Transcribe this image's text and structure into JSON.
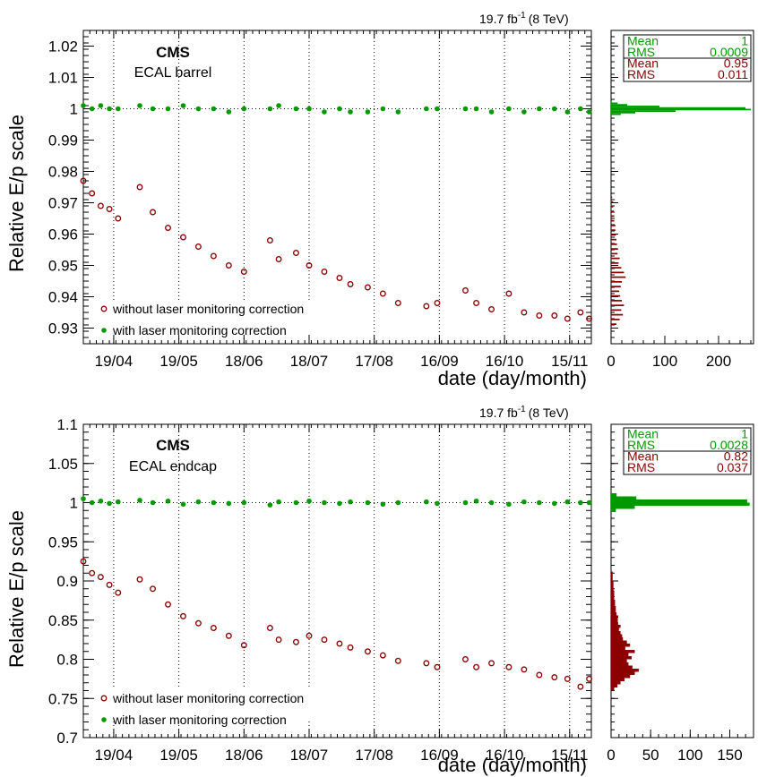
{
  "chart_data": [
    {
      "type": "scatter",
      "title": "CMS",
      "subtitle": "ECAL barrel",
      "lumi_label": "19.7 fb",
      "lumi_exp": "-1",
      "energy_label": "(8 TeV)",
      "xlabel": "date (day/month)",
      "ylabel": "Relative E/p scale",
      "x_range": [
        "2012-04-05",
        "2012-11-25"
      ],
      "x_ticks": [
        "19/04",
        "19/05",
        "18/06",
        "18/07",
        "17/08",
        "16/09",
        "16/10",
        "15/11"
      ],
      "x_tick_dates": [
        "2012-04-19",
        "2012-05-19",
        "2012-06-18",
        "2012-07-18",
        "2012-08-17",
        "2012-09-16",
        "2012-10-16",
        "2012-11-15"
      ],
      "ylim": [
        0.925,
        1.025
      ],
      "y_ticks": [
        "0.93",
        "0.94",
        "0.95",
        "0.96",
        "0.97",
        "0.98",
        "0.99",
        "1",
        "1.01",
        "1.02"
      ],
      "reference_line": 1.0,
      "grid": "vertical dotted at x ticks, horizontal dotted at y = 1",
      "legend_position": "bottom-left",
      "series": [
        {
          "name": "without laser monitoring correction",
          "color": "#8b0000",
          "marker": "open-circle",
          "x": [
            "2012-04-05",
            "2012-04-09",
            "2012-04-13",
            "2012-04-17",
            "2012-04-21",
            "2012-05-01",
            "2012-05-07",
            "2012-05-14",
            "2012-05-21",
            "2012-05-28",
            "2012-06-04",
            "2012-06-11",
            "2012-06-18",
            "2012-06-30",
            "2012-07-04",
            "2012-07-12",
            "2012-07-18",
            "2012-07-25",
            "2012-08-01",
            "2012-08-06",
            "2012-08-14",
            "2012-08-21",
            "2012-08-28",
            "2012-09-10",
            "2012-09-15",
            "2012-09-28",
            "2012-10-03",
            "2012-10-10",
            "2012-10-18",
            "2012-10-25",
            "2012-11-01",
            "2012-11-08",
            "2012-11-14",
            "2012-11-20",
            "2012-11-24"
          ],
          "y": [
            0.977,
            0.973,
            0.969,
            0.968,
            0.965,
            0.975,
            0.967,
            0.962,
            0.959,
            0.956,
            0.953,
            0.95,
            0.948,
            0.958,
            0.952,
            0.954,
            0.95,
            0.948,
            0.946,
            0.944,
            0.943,
            0.941,
            0.938,
            0.937,
            0.938,
            0.942,
            0.938,
            0.936,
            0.941,
            0.935,
            0.934,
            0.934,
            0.933,
            0.935,
            0.933
          ]
        },
        {
          "name": "with laser monitoring correction",
          "color": "#009900",
          "marker": "filled-circle",
          "x": [
            "2012-04-05",
            "2012-04-09",
            "2012-04-13",
            "2012-04-17",
            "2012-04-21",
            "2012-05-01",
            "2012-05-07",
            "2012-05-14",
            "2012-05-21",
            "2012-05-28",
            "2012-06-04",
            "2012-06-11",
            "2012-06-18",
            "2012-06-30",
            "2012-07-04",
            "2012-07-12",
            "2012-07-18",
            "2012-07-25",
            "2012-08-01",
            "2012-08-06",
            "2012-08-14",
            "2012-08-21",
            "2012-08-28",
            "2012-09-10",
            "2012-09-15",
            "2012-09-28",
            "2012-10-03",
            "2012-10-10",
            "2012-10-18",
            "2012-10-25",
            "2012-11-01",
            "2012-11-08",
            "2012-11-14",
            "2012-11-20",
            "2012-11-24"
          ],
          "y": [
            1.001,
            1.0,
            1.001,
            1.0,
            1.0,
            1.001,
            1.0,
            1.0,
            1.001,
            1.0,
            1.0,
            0.999,
            1.0,
            1.0,
            1.001,
            1.0,
            1.0,
            0.999,
            1.0,
            0.999,
            0.999,
            1.0,
            0.999,
            1.0,
            1.0,
            1.0,
            1.0,
            0.999,
            1.0,
            0.999,
            1.0,
            1.0,
            0.999,
            1.0,
            0.999
          ]
        }
      ],
      "histogram": {
        "x_ticks": [
          "0",
          "100",
          "200"
        ],
        "xlim": [
          0,
          265
        ],
        "bin_width": 0.0005,
        "green": {
          "centers": [
            0.99825,
            0.99875,
            0.99925,
            0.99975,
            1.00025,
            1.00075,
            1.00125,
            1.00175
          ],
          "counts": [
            18,
            45,
            120,
            260,
            250,
            90,
            30,
            12
          ]
        },
        "red": {
          "centers": [
            0.93125,
            0.93275,
            0.93425,
            0.93575,
            0.93725,
            0.93875,
            0.94025,
            0.94175,
            0.94325,
            0.94475,
            0.94625,
            0.94775,
            0.94925,
            0.95075,
            0.95225,
            0.95375,
            0.95525,
            0.95675,
            0.95825,
            0.95975,
            0.96125,
            0.96275,
            0.96425,
            0.96575,
            0.96725,
            0.96875,
            0.97025,
            0.97175
          ],
          "counts": [
            10,
            16,
            22,
            19,
            24,
            20,
            17,
            15,
            18,
            20,
            27,
            24,
            19,
            14,
            16,
            12,
            13,
            11,
            10,
            9,
            8,
            8,
            6,
            6,
            5,
            4,
            4,
            2
          ]
        },
        "stats": [
          {
            "label": "Mean",
            "value": "1",
            "color": "#009900"
          },
          {
            "label": "RMS",
            "value": "0.0009",
            "color": "#009900"
          },
          {
            "label": "Mean",
            "value": "0.95",
            "color": "#8b0000"
          },
          {
            "label": "RMS",
            "value": "0.011",
            "color": "#8b0000"
          }
        ]
      }
    },
    {
      "type": "scatter",
      "title": "CMS",
      "subtitle": "ECAL endcap",
      "lumi_label": "19.7 fb",
      "lumi_exp": "-1",
      "energy_label": "(8 TeV)",
      "xlabel": "date (day/month)",
      "ylabel": "Relative E/p scale",
      "x_range": [
        "2012-04-05",
        "2012-11-25"
      ],
      "x_ticks": [
        "19/04",
        "19/05",
        "18/06",
        "18/07",
        "17/08",
        "16/09",
        "16/10",
        "15/11"
      ],
      "x_tick_dates": [
        "2012-04-19",
        "2012-05-19",
        "2012-06-18",
        "2012-07-18",
        "2012-08-17",
        "2012-09-16",
        "2012-10-16",
        "2012-11-15"
      ],
      "ylim": [
        0.7,
        1.1
      ],
      "y_ticks": [
        "0.7",
        "0.75",
        "0.8",
        "0.85",
        "0.9",
        "0.95",
        "1",
        "1.05",
        "1.1"
      ],
      "reference_line": 1.0,
      "grid": "vertical dotted at x ticks, horizontal dotted at y = 1",
      "legend_position": "bottom-left",
      "series": [
        {
          "name": "without laser monitoring correction",
          "color": "#8b0000",
          "marker": "open-circle",
          "x": [
            "2012-04-05",
            "2012-04-09",
            "2012-04-13",
            "2012-04-17",
            "2012-04-21",
            "2012-05-01",
            "2012-05-07",
            "2012-05-14",
            "2012-05-21",
            "2012-05-28",
            "2012-06-04",
            "2012-06-11",
            "2012-06-18",
            "2012-06-30",
            "2012-07-04",
            "2012-07-12",
            "2012-07-18",
            "2012-07-25",
            "2012-08-01",
            "2012-08-06",
            "2012-08-14",
            "2012-08-21",
            "2012-08-28",
            "2012-09-10",
            "2012-09-15",
            "2012-09-28",
            "2012-10-03",
            "2012-10-10",
            "2012-10-18",
            "2012-10-25",
            "2012-11-01",
            "2012-11-08",
            "2012-11-14",
            "2012-11-20",
            "2012-11-24"
          ],
          "y": [
            0.925,
            0.91,
            0.905,
            0.895,
            0.885,
            0.902,
            0.89,
            0.87,
            0.855,
            0.846,
            0.84,
            0.83,
            0.818,
            0.84,
            0.825,
            0.822,
            0.83,
            0.825,
            0.82,
            0.815,
            0.81,
            0.805,
            0.798,
            0.795,
            0.79,
            0.8,
            0.79,
            0.795,
            0.79,
            0.787,
            0.78,
            0.777,
            0.775,
            0.765,
            0.775
          ]
        },
        {
          "name": "with laser monitoring correction",
          "color": "#009900",
          "marker": "filled-circle",
          "x": [
            "2012-04-05",
            "2012-04-09",
            "2012-04-13",
            "2012-04-17",
            "2012-04-21",
            "2012-05-01",
            "2012-05-07",
            "2012-05-14",
            "2012-05-21",
            "2012-05-28",
            "2012-06-04",
            "2012-06-11",
            "2012-06-18",
            "2012-06-30",
            "2012-07-04",
            "2012-07-12",
            "2012-07-18",
            "2012-07-25",
            "2012-08-01",
            "2012-08-06",
            "2012-08-14",
            "2012-08-21",
            "2012-08-28",
            "2012-09-10",
            "2012-09-15",
            "2012-09-28",
            "2012-10-03",
            "2012-10-10",
            "2012-10-18",
            "2012-10-25",
            "2012-11-01",
            "2012-11-08",
            "2012-11-14",
            "2012-11-20",
            "2012-11-24"
          ],
          "y": [
            1.005,
            1.0,
            1.002,
            0.999,
            1.001,
            1.003,
            1.0,
            1.002,
            0.998,
            1.001,
            1.0,
            0.999,
            1.0,
            0.997,
            1.001,
            1.0,
            1.002,
            1.0,
            0.999,
            1.001,
            1.0,
            0.998,
            1.0,
            1.001,
            0.999,
            1.0,
            1.002,
            1.0,
            0.998,
            1.001,
            1.0,
            0.999,
            1.001,
            1.0,
            1.0
          ]
        }
      ],
      "histogram": {
        "x_ticks": [
          "0",
          "50",
          "100",
          "150"
        ],
        "xlim": [
          0,
          180
        ],
        "bin_width": 0.004,
        "green": {
          "centers": [
            0.99,
            0.994,
            0.998,
            1.002,
            1.006,
            1.01
          ],
          "counts": [
            6,
            30,
            175,
            172,
            32,
            7
          ]
        },
        "red": {
          "centers": [
            0.762,
            0.766,
            0.77,
            0.774,
            0.778,
            0.782,
            0.786,
            0.79,
            0.794,
            0.798,
            0.802,
            0.806,
            0.81,
            0.814,
            0.818,
            0.822,
            0.826,
            0.83,
            0.834,
            0.838,
            0.842,
            0.846,
            0.85,
            0.854,
            0.858,
            0.862,
            0.866,
            0.87,
            0.874,
            0.878,
            0.882,
            0.886,
            0.89,
            0.894,
            0.898,
            0.902,
            0.906,
            0.91
          ],
          "counts": [
            4,
            8,
            12,
            17,
            24,
            30,
            35,
            27,
            22,
            20,
            26,
            22,
            30,
            18,
            24,
            20,
            15,
            14,
            12,
            10,
            12,
            9,
            8,
            9,
            7,
            6,
            6,
            5,
            5,
            4,
            4,
            4,
            3,
            3,
            3,
            2,
            2,
            2
          ]
        },
        "stats": [
          {
            "label": "Mean",
            "value": "1",
            "color": "#009900"
          },
          {
            "label": "RMS",
            "value": "0.0028",
            "color": "#009900"
          },
          {
            "label": "Mean",
            "value": "0.82",
            "color": "#8b0000"
          },
          {
            "label": "RMS",
            "value": "0.037",
            "color": "#8b0000"
          }
        ]
      }
    }
  ]
}
